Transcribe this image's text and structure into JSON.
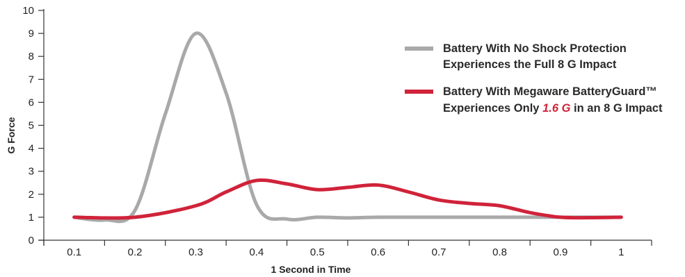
{
  "chart_data": {
    "type": "line",
    "xlabel": "1 Second in Time",
    "ylabel": "G Force",
    "x_tick_labels": [
      "0.1",
      "0.2",
      "0.3",
      "0.4",
      "0.5",
      "0.6",
      "0.7",
      "0.8",
      "0.9",
      "1"
    ],
    "y_tick_labels": [
      "0",
      "1",
      "2",
      "3",
      "4",
      "5",
      "6",
      "7",
      "8",
      "9",
      "10"
    ],
    "xlim": [
      0.05,
      1.05
    ],
    "ylim": [
      0,
      10
    ],
    "grid": false,
    "legend_position": "right",
    "series": [
      {
        "key": "no_protection",
        "color": "#a9a9aa",
        "legend": {
          "line1": "Battery With No Shock Protection",
          "line2": "Experiences the Full 8 G Impact"
        },
        "x": [
          0.1,
          0.15,
          0.2,
          0.25,
          0.3,
          0.35,
          0.4,
          0.45,
          0.5,
          0.55,
          0.6,
          0.7,
          0.8,
          0.9,
          1.0
        ],
        "y": [
          1.0,
          0.88,
          1.3,
          5.5,
          9.0,
          6.4,
          1.55,
          0.92,
          1.0,
          0.97,
          1.0,
          1.0,
          1.0,
          1.0,
          1.0
        ]
      },
      {
        "key": "batteryguard",
        "color": "#d0233a",
        "legend": {
          "line1": "Battery With Megaware BatteryGuard™",
          "line2_pre": "Experiences Only ",
          "line2_em": "1.6 G",
          "line2_post": " in an 8 G Impact"
        },
        "x": [
          0.1,
          0.2,
          0.3,
          0.35,
          0.4,
          0.45,
          0.5,
          0.55,
          0.6,
          0.65,
          0.7,
          0.75,
          0.8,
          0.85,
          0.9,
          0.95,
          1.0
        ],
        "y": [
          1.0,
          1.0,
          1.5,
          2.1,
          2.6,
          2.45,
          2.2,
          2.3,
          2.4,
          2.1,
          1.75,
          1.6,
          1.5,
          1.2,
          1.0,
          0.98,
          1.0
        ]
      }
    ]
  }
}
